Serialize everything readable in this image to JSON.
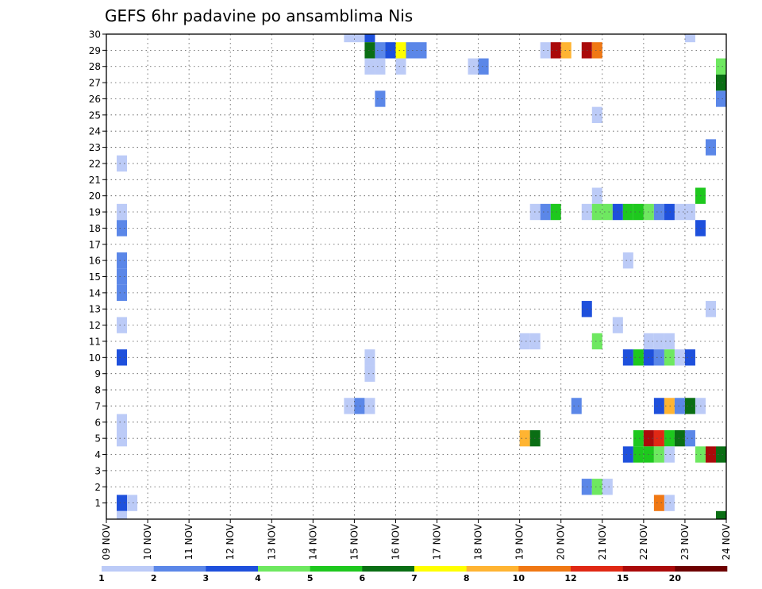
{
  "chart_data": {
    "type": "heatmap",
    "title": "GEFS 6hr padavine po ansamblima Nis",
    "xlabel": "",
    "ylabel": "",
    "x_ticks": [
      "09 NOV",
      "10 NOV",
      "11 NOV",
      "12 NOV",
      "13 NOV",
      "14 NOV",
      "15 NOV",
      "16 NOV",
      "17 NOV",
      "18 NOV",
      "19 NOV",
      "20 NOV",
      "21 NOV",
      "22 NOV",
      "23 NOV",
      "24 NOV"
    ],
    "y_ticks": [
      "1",
      "2",
      "3",
      "4",
      "5",
      "6",
      "7",
      "8",
      "9",
      "10",
      "11",
      "12",
      "13",
      "14",
      "15",
      "16",
      "17",
      "18",
      "19",
      "20",
      "21",
      "22",
      "23",
      "24",
      "25",
      "26",
      "27",
      "28",
      "29",
      "30"
    ],
    "x_range_days": [
      0,
      15
    ],
    "y_range_members": [
      0,
      30
    ],
    "grid": "dotted",
    "colorbar": {
      "labels": [
        "1",
        "2",
        "3",
        "4",
        "5",
        "6",
        "7",
        "8",
        "10",
        "12",
        "15",
        "20"
      ],
      "colors": [
        "#bccbf7",
        "#5b87e8",
        "#1e50dc",
        "#6ee860",
        "#1ec81e",
        "#0a6e14",
        "#ffff00",
        "#ffb432",
        "#f07814",
        "#e02814",
        "#aa0a0a",
        "#6e0000"
      ]
    },
    "cell_format": "[member, day_offset_from_09_NOV, precip_class]",
    "cells": [
      [
        30,
        5.75,
        1
      ],
      [
        30,
        6,
        1
      ],
      [
        30,
        6.25,
        3
      ],
      [
        30,
        14.0,
        1
      ],
      [
        29,
        6.25,
        6
      ],
      [
        29,
        6.5,
        2
      ],
      [
        29,
        6.75,
        3
      ],
      [
        29,
        7,
        7
      ],
      [
        29,
        7.25,
        2
      ],
      [
        29,
        7.5,
        2
      ],
      [
        29,
        10.5,
        1
      ],
      [
        29,
        10.75,
        11
      ],
      [
        29,
        11,
        8
      ],
      [
        29,
        11.5,
        11
      ],
      [
        29,
        11.75,
        9
      ],
      [
        28,
        6.25,
        1
      ],
      [
        28,
        6.5,
        1
      ],
      [
        28,
        7,
        1
      ],
      [
        28,
        8.75,
        1
      ],
      [
        28,
        9,
        2
      ],
      [
        28,
        14.75,
        4
      ],
      [
        27,
        14.75,
        6
      ],
      [
        26,
        6.5,
        2
      ],
      [
        26,
        14.75,
        2
      ],
      [
        25,
        11.75,
        1
      ],
      [
        23,
        14.5,
        2
      ],
      [
        22,
        0.25,
        1
      ],
      [
        20,
        11.75,
        1
      ],
      [
        20,
        14.25,
        5
      ],
      [
        19,
        0.25,
        1
      ],
      [
        19,
        10.25,
        1
      ],
      [
        19,
        10.5,
        2
      ],
      [
        19,
        10.75,
        5
      ],
      [
        19,
        11.5,
        1
      ],
      [
        19,
        11.75,
        4
      ],
      [
        19,
        12,
        4
      ],
      [
        19,
        12.25,
        3
      ],
      [
        19,
        12.5,
        5
      ],
      [
        19,
        12.75,
        5
      ],
      [
        19,
        13,
        4
      ],
      [
        19,
        13.25,
        2
      ],
      [
        19,
        13.5,
        3
      ],
      [
        19,
        13.75,
        1
      ],
      [
        19,
        14,
        1
      ],
      [
        18,
        0.25,
        2
      ],
      [
        18,
        14.25,
        3
      ],
      [
        16,
        0.25,
        2
      ],
      [
        16,
        12.5,
        1
      ],
      [
        15,
        0.25,
        2
      ],
      [
        14,
        0.25,
        2
      ],
      [
        13,
        11.5,
        3
      ],
      [
        13,
        14.5,
        1
      ],
      [
        12,
        0.25,
        1
      ],
      [
        12,
        12.25,
        1
      ],
      [
        11,
        10,
        1
      ],
      [
        11,
        10.25,
        1
      ],
      [
        11,
        11.75,
        4
      ],
      [
        11,
        13,
        1
      ],
      [
        11,
        13.25,
        1
      ],
      [
        11,
        13.5,
        1
      ],
      [
        10,
        0.25,
        3
      ],
      [
        10,
        6.25,
        1
      ],
      [
        10,
        12.5,
        3
      ],
      [
        10,
        12.75,
        5
      ],
      [
        10,
        13,
        3
      ],
      [
        10,
        13.25,
        2
      ],
      [
        10,
        13.5,
        4
      ],
      [
        10,
        13.75,
        1
      ],
      [
        10,
        14,
        3
      ],
      [
        9,
        6.25,
        1
      ],
      [
        7,
        5.75,
        1
      ],
      [
        7,
        6,
        2
      ],
      [
        7,
        6.25,
        1
      ],
      [
        7,
        11.25,
        2
      ],
      [
        7,
        13.25,
        3
      ],
      [
        7,
        13.5,
        8
      ],
      [
        7,
        13.75,
        2
      ],
      [
        7,
        14,
        6
      ],
      [
        7,
        14.25,
        1
      ],
      [
        6,
        0.25,
        1
      ],
      [
        5,
        0.25,
        1
      ],
      [
        5,
        10,
        8
      ],
      [
        5,
        10.25,
        6
      ],
      [
        5,
        12.75,
        5
      ],
      [
        5,
        13,
        11
      ],
      [
        5,
        13.25,
        10
      ],
      [
        5,
        13.5,
        5
      ],
      [
        5,
        13.75,
        6
      ],
      [
        5,
        14,
        2
      ],
      [
        4,
        12.5,
        3
      ],
      [
        4,
        12.75,
        5
      ],
      [
        4,
        13,
        5
      ],
      [
        4,
        13.25,
        4
      ],
      [
        4,
        13.5,
        1
      ],
      [
        4,
        14.25,
        4
      ],
      [
        4,
        14.5,
        11
      ],
      [
        4,
        14.75,
        6
      ],
      [
        2,
        11.5,
        2
      ],
      [
        2,
        11.75,
        4
      ],
      [
        2,
        12,
        1
      ],
      [
        1,
        0.25,
        3
      ],
      [
        1,
        0.5,
        1
      ],
      [
        1,
        13.25,
        9
      ],
      [
        1,
        13.5,
        1
      ],
      [
        0,
        0.25,
        1
      ],
      [
        0,
        14.75,
        6
      ]
    ]
  }
}
